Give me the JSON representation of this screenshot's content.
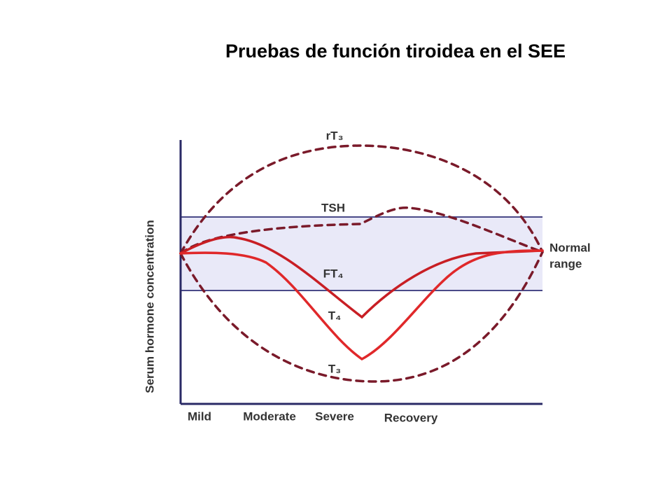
{
  "title": "Pruebas de función tiroidea en el SEE",
  "y_axis_label": "Serum hormone concentration",
  "x_labels": [
    "Mild",
    "Moderate",
    "Severe",
    "Recovery"
  ],
  "curve_labels": {
    "rt3": "rT₃",
    "tsh": "TSH",
    "ft4": "FT₄",
    "t4": "T₄",
    "t3": "T₃"
  },
  "normal_range": [
    "Normal",
    "range"
  ]
}
